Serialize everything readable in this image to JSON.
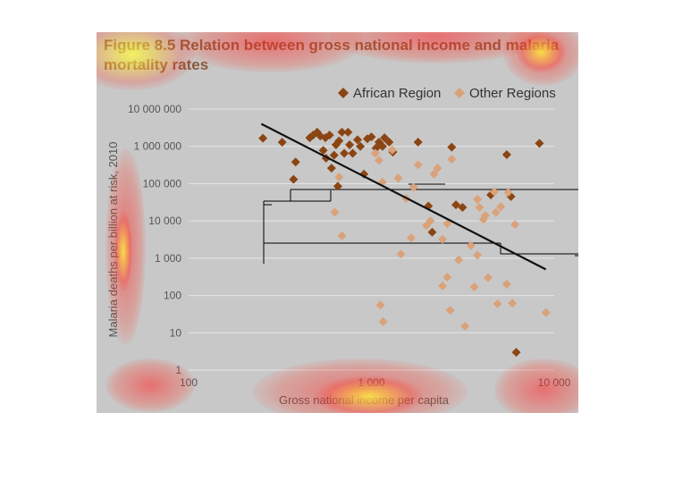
{
  "chart_data": {
    "type": "scatter",
    "title": "Figure 8.5 Relation between gross national income and malaria mortality rates",
    "xlabel": "Gross national income per capita",
    "ylabel": "Malaria deaths per billion at risk, 2010",
    "x_scale": "log",
    "y_scale": "log",
    "xlim": [
      100,
      10000
    ],
    "ylim": [
      1,
      10000000
    ],
    "x_ticks": [
      100,
      1000,
      10000
    ],
    "x_tick_labels": [
      "100",
      "1 000",
      "10 000"
    ],
    "y_ticks": [
      1,
      10,
      100,
      1000,
      10000,
      100000,
      1000000,
      10000000
    ],
    "y_tick_labels": [
      "1",
      "10",
      "100",
      "1 000",
      "10 000",
      "100 000",
      "1 000 000",
      "10 000 000"
    ],
    "grid": true,
    "legend_position": "top-right",
    "trend_line": {
      "x": [
        250,
        9000
      ],
      "y": [
        4000000,
        500
      ]
    },
    "series": [
      {
        "name": "African Region",
        "color": "#8b4513",
        "marker": "diamond",
        "points": [
          [
            255,
            1650000
          ],
          [
            325,
            1290000
          ],
          [
            385,
            380000
          ],
          [
            375,
            130000
          ],
          [
            460,
            1700000
          ],
          [
            480,
            2000000
          ],
          [
            505,
            2400000
          ],
          [
            525,
            1900000
          ],
          [
            545,
            780000
          ],
          [
            565,
            480000
          ],
          [
            560,
            1700000
          ],
          [
            590,
            2000000
          ],
          [
            605,
            260000
          ],
          [
            625,
            580000
          ],
          [
            640,
            1100000
          ],
          [
            655,
            85000
          ],
          [
            665,
            1400000
          ],
          [
            690,
            2400000
          ],
          [
            710,
            650000
          ],
          [
            745,
            2400000
          ],
          [
            760,
            1100000
          ],
          [
            790,
            650000
          ],
          [
            840,
            1500000
          ],
          [
            870,
            1000000
          ],
          [
            910,
            180000
          ],
          [
            950,
            1600000
          ],
          [
            1000,
            1800000
          ],
          [
            1060,
            900000
          ],
          [
            1100,
            1300000
          ],
          [
            1150,
            1000000
          ],
          [
            1180,
            1700000
          ],
          [
            1250,
            1300000
          ],
          [
            1310,
            700000
          ],
          [
            1800,
            1300000
          ],
          [
            2050,
            25000
          ],
          [
            2150,
            5000
          ],
          [
            2750,
            950000
          ],
          [
            2900,
            27000
          ],
          [
            3150,
            23000
          ],
          [
            4500,
            50000
          ],
          [
            5500,
            600000
          ],
          [
            5800,
            45000
          ],
          [
            6200,
            3
          ],
          [
            8300,
            1200000
          ]
        ]
      },
      {
        "name": "Other Regions",
        "color": "#d9a27a",
        "marker": "diamond",
        "points": [
          [
            630,
            17000
          ],
          [
            690,
            4000
          ],
          [
            665,
            150000
          ],
          [
            1050,
            650000
          ],
          [
            1100,
            420000
          ],
          [
            1150,
            110000
          ],
          [
            1120,
            55
          ],
          [
            1160,
            20
          ],
          [
            1300,
            800000
          ],
          [
            1400,
            140000
          ],
          [
            1450,
            1300
          ],
          [
            1550,
            40000
          ],
          [
            1650,
            3500
          ],
          [
            1700,
            80000
          ],
          [
            1800,
            320000
          ],
          [
            2000,
            7500
          ],
          [
            2100,
            10000
          ],
          [
            2200,
            180000
          ],
          [
            2300,
            260000
          ],
          [
            2450,
            3200
          ],
          [
            2450,
            180
          ],
          [
            2600,
            8500
          ],
          [
            2600,
            310
          ],
          [
            2700,
            40
          ],
          [
            2750,
            450000
          ],
          [
            3000,
            900
          ],
          [
            3250,
            15
          ],
          [
            3500,
            2200
          ],
          [
            3650,
            170
          ],
          [
            3800,
            1200
          ],
          [
            3800,
            38000
          ],
          [
            3900,
            23000
          ],
          [
            4100,
            11000
          ],
          [
            4200,
            14000
          ],
          [
            4350,
            300
          ],
          [
            4700,
            60000
          ],
          [
            4800,
            17000
          ],
          [
            4900,
            60
          ],
          [
            5100,
            24000
          ],
          [
            5500,
            200
          ],
          [
            5600,
            58000
          ],
          [
            5900,
            62
          ],
          [
            6100,
            8000
          ],
          [
            9000,
            35
          ]
        ]
      }
    ]
  },
  "colors": {
    "panel_background": "#c8c8c8",
    "title_color": "#8a5a3a",
    "axis_text": "#555555",
    "grid_line": "#e6e6e6",
    "trend_line": "#111111",
    "heat_red": "#ff2828",
    "heat_yellow": "#ffff3c"
  }
}
